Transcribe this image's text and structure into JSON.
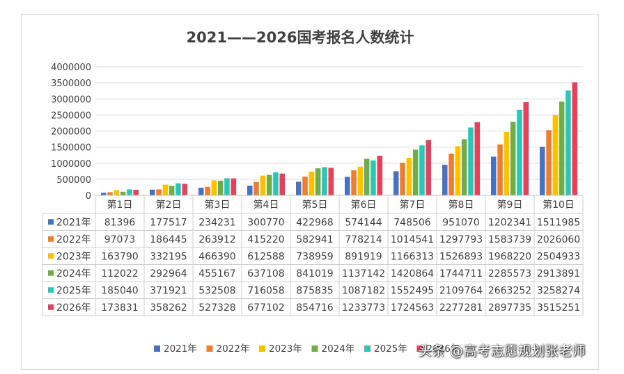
{
  "chart_data": {
    "type": "bar",
    "title": "2021——2026国考报名人数统计",
    "categories": [
      "第1日",
      "第2日",
      "第3日",
      "第4日",
      "第5日",
      "第6日",
      "第7日",
      "第8日",
      "第9日",
      "第10日"
    ],
    "ylim": [
      0,
      4000000
    ],
    "yticks": [
      0,
      500000,
      1000000,
      1500000,
      2000000,
      2500000,
      3000000,
      3500000,
      4000000
    ],
    "grid": true,
    "legend": "bottom",
    "data_table": true,
    "series": [
      {
        "name": "2021年",
        "color": "#4472c4",
        "values": [
          81396,
          177517,
          234231,
          300770,
          422968,
          574144,
          748506,
          951070,
          1202341,
          1511985
        ]
      },
      {
        "name": "2022年",
        "color": "#ed7d31",
        "values": [
          97073,
          186445,
          263912,
          415220,
          582941,
          778214,
          1014541,
          1297793,
          1583739,
          2026060
        ]
      },
      {
        "name": "2023年",
        "color": "#ffc000",
        "values": [
          163790,
          332195,
          466390,
          612588,
          738959,
          891919,
          1166313,
          1526893,
          1968220,
          2504933
        ]
      },
      {
        "name": "2024年",
        "color": "#70ad47",
        "values": [
          112022,
          292964,
          455167,
          637108,
          841019,
          1137142,
          1420864,
          1744711,
          2285573,
          2913891
        ]
      },
      {
        "name": "2025年",
        "color": "#2ec4b6",
        "values": [
          185040,
          371921,
          532508,
          716058,
          875835,
          1087182,
          1552495,
          2109764,
          2663252,
          3258274
        ]
      },
      {
        "name": "2026年",
        "color": "#e0435a",
        "values": [
          173831,
          358262,
          527328,
          677102,
          854716,
          1233773,
          1724563,
          2277281,
          2897735,
          3515251
        ]
      }
    ]
  },
  "watermark": "头条 @高考志愿规划张老师"
}
